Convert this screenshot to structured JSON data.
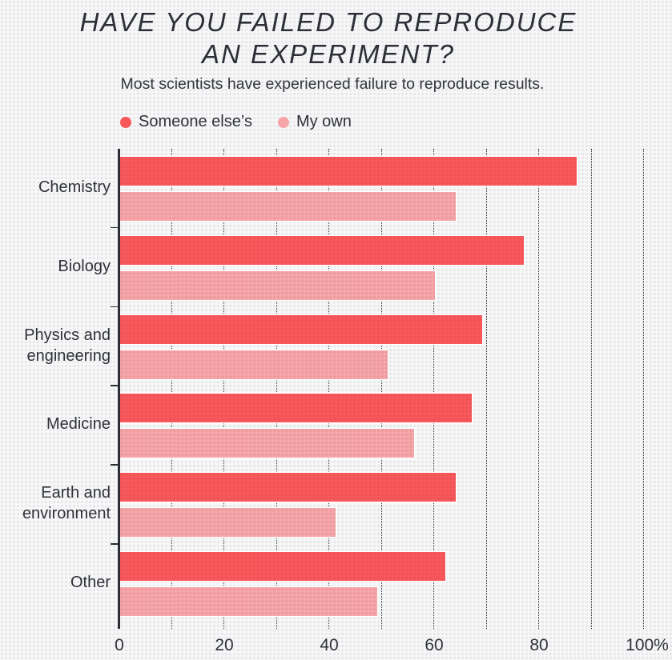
{
  "title_line1": "HAVE YOU FAILED TO REPRODUCE",
  "title_line2": "AN EXPERIMENT?",
  "subtitle": "Most scientists have experienced failure to reproduce results.",
  "legend": [
    {
      "label": "Someone else’s",
      "color": "#f9585b"
    },
    {
      "label": "My own",
      "color": "#f6a6a8"
    }
  ],
  "x_ticks": [
    "0",
    "20",
    "40",
    "60",
    "80",
    "100%"
  ],
  "chart_data": {
    "type": "bar",
    "orientation": "horizontal",
    "title": "HAVE YOU FAILED TO REPRODUCE AN EXPERIMENT?",
    "subtitle": "Most scientists have experienced failure to reproduce results.",
    "categories": [
      "Chemistry",
      "Biology",
      "Physics and engineering",
      "Medicine",
      "Earth and environment",
      "Other"
    ],
    "series": [
      {
        "name": "Someone else’s",
        "color": "#f9585b",
        "values": [
          87,
          77,
          69,
          67,
          64,
          62
        ]
      },
      {
        "name": "My own",
        "color": "#f6a6a8",
        "values": [
          64,
          60,
          51,
          56,
          41,
          49
        ]
      }
    ],
    "xlabel": "",
    "ylabel": "",
    "xlim": [
      0,
      100
    ],
    "x_ticks": [
      0,
      20,
      40,
      60,
      80,
      100
    ],
    "x_tick_suffix_last": "%",
    "grid": "vertical dotted lines every 10",
    "legend_position": "top-left"
  }
}
